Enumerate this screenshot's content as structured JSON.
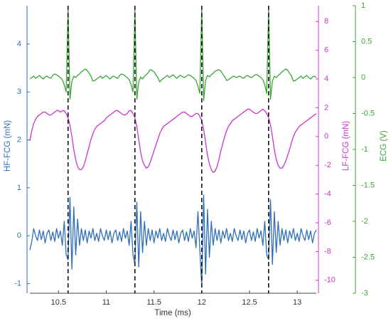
{
  "chart_data": {
    "type": "line",
    "xlabel": "Time (ms)",
    "xlim": [
      10.2,
      13.2
    ],
    "xticks": [
      10.5,
      11,
      11.5,
      12,
      12.5,
      13
    ],
    "ylim": [
      -1.2,
      4.8
    ],
    "yticks": [
      -1,
      0,
      1,
      2,
      3,
      4
    ],
    "y2lim": [
      -10.9,
      9.1
    ],
    "y2ticks": [
      -10,
      -8,
      -6,
      -4,
      -2,
      0,
      2,
      4,
      6,
      8
    ],
    "y3lim": [
      -3,
      1
    ],
    "y3ticks": [
      -3,
      -2.5,
      -2,
      -1.5,
      -1,
      -0.5,
      0,
      0.5,
      1
    ],
    "vlines": [
      10.6,
      11.3,
      12,
      12.7
    ],
    "x": [
      10.2,
      10.22,
      10.24,
      10.26,
      10.28,
      10.3,
      10.32,
      10.34,
      10.36,
      10.38,
      10.4,
      10.42,
      10.44,
      10.46,
      10.48,
      10.5,
      10.52,
      10.54,
      10.56,
      10.58,
      10.6,
      10.62,
      10.64,
      10.66,
      10.68,
      10.7,
      10.72,
      10.74,
      10.76,
      10.78,
      10.8,
      10.82,
      10.84,
      10.86,
      10.88,
      10.9,
      10.92,
      10.94,
      10.96,
      10.98,
      11,
      11.02,
      11.04,
      11.06,
      11.08,
      11.1,
      11.12,
      11.14,
      11.16,
      11.18,
      11.2,
      11.22,
      11.24,
      11.26,
      11.28,
      11.3,
      11.32,
      11.34,
      11.36,
      11.38,
      11.4,
      11.42,
      11.44,
      11.46,
      11.48,
      11.5,
      11.52,
      11.54,
      11.56,
      11.58,
      11.6,
      11.62,
      11.64,
      11.66,
      11.68,
      11.7,
      11.72,
      11.74,
      11.76,
      11.78,
      11.8,
      11.82,
      11.84,
      11.86,
      11.88,
      11.9,
      11.92,
      11.94,
      11.96,
      11.98,
      12,
      12.02,
      12.04,
      12.06,
      12.08,
      12.1,
      12.12,
      12.14,
      12.16,
      12.18,
      12.2,
      12.22,
      12.24,
      12.26,
      12.28,
      12.3,
      12.32,
      12.34,
      12.36,
      12.38,
      12.4,
      12.42,
      12.44,
      12.46,
      12.48,
      12.5,
      12.52,
      12.54,
      12.56,
      12.58,
      12.6,
      12.62,
      12.64,
      12.66,
      12.68,
      12.7,
      12.72,
      12.74,
      12.76,
      12.78,
      12.8,
      12.82,
      12.84,
      12.86,
      12.88,
      12.9,
      12.92,
      12.94,
      12.96,
      12.98,
      13,
      13.02,
      13.04,
      13.06,
      13.08,
      13.1,
      13.12,
      13.14,
      13.16,
      13.18,
      13.2
    ],
    "series": [
      {
        "name": "HF-FCG (mN)",
        "color": "#2e6fb7",
        "axis": "y",
        "values": [
          -0.3,
          -0.12,
          0.15,
          0.0,
          -0.1,
          0.12,
          -0.08,
          0.1,
          -0.15,
          0.05,
          0.12,
          -0.1,
          0.08,
          -0.12,
          0.15,
          -0.05,
          0.1,
          -0.2,
          0.3,
          -0.4,
          -0.5,
          0.8,
          -0.7,
          0.6,
          -0.4,
          0.35,
          -0.2,
          0.15,
          -0.1,
          0.12,
          -0.15,
          0.1,
          -0.05,
          0.15,
          -0.1,
          0.05,
          -0.12,
          0.15,
          0.0,
          -0.1,
          0.12,
          -0.08,
          0.1,
          -0.15,
          0.05,
          0.12,
          -0.1,
          0.08,
          -0.12,
          0.15,
          -0.05,
          0.1,
          -0.2,
          0.3,
          -0.4,
          -0.6,
          0.7,
          -0.65,
          0.5,
          -0.35,
          0.3,
          -0.2,
          0.15,
          -0.1,
          0.12,
          -0.15,
          0.1,
          -0.05,
          0.15,
          -0.1,
          0.05,
          -0.12,
          0.15,
          0.0,
          -0.1,
          0.12,
          -0.08,
          0.1,
          -0.15,
          0.05,
          0.12,
          -0.1,
          0.08,
          -0.12,
          0.15,
          -0.05,
          0.1,
          -0.25,
          0.5,
          -0.3,
          -1.05,
          0.85,
          -0.8,
          0.55,
          -0.45,
          0.3,
          -0.2,
          0.15,
          -0.1,
          0.12,
          -0.15,
          0.1,
          -0.05,
          0.15,
          -0.1,
          0.05,
          -0.12,
          0.15,
          0.0,
          -0.1,
          0.12,
          -0.08,
          0.1,
          -0.15,
          0.05,
          0.12,
          -0.1,
          0.08,
          -0.12,
          0.15,
          -0.05,
          0.1,
          -0.2,
          0.3,
          -0.4,
          -0.5,
          0.75,
          -0.6,
          0.5,
          -0.35,
          0.3,
          -0.2,
          0.15,
          -0.1,
          0.12,
          -0.15,
          0.1,
          -0.05,
          0.15,
          -0.1,
          0.05,
          -0.12,
          0.15,
          0.0,
          -0.1,
          0.12,
          -0.08,
          0.1,
          -0.15,
          0.05,
          0.12
        ]
      },
      {
        "name": "LF-FCG (mN)",
        "color": "#cc33cc",
        "axis": "y2",
        "values": [
          -0.3,
          0.4,
          0.9,
          1.2,
          1.4,
          1.5,
          1.6,
          1.7,
          1.7,
          1.6,
          1.5,
          1.5,
          1.6,
          1.7,
          1.8,
          1.8,
          1.7,
          1.8,
          1.8,
          1.6,
          1.3,
          0.8,
          0.0,
          -0.9,
          -1.6,
          -2.1,
          -2.3,
          -2.3,
          -2.1,
          -1.7,
          -1.2,
          -0.7,
          -0.2,
          0.2,
          0.5,
          0.7,
          0.8,
          0.9,
          1.0,
          1.1,
          1.3,
          1.4,
          1.5,
          1.6,
          1.7,
          1.8,
          1.8,
          1.7,
          1.6,
          1.5,
          1.5,
          1.6,
          1.8,
          1.8,
          1.6,
          1.3,
          0.7,
          -0.2,
          -1.1,
          -1.7,
          -2.0,
          -2.2,
          -2.1,
          -1.8,
          -1.4,
          -1.0,
          -0.6,
          -0.2,
          0.2,
          0.5,
          0.7,
          0.8,
          0.9,
          1.0,
          1.1,
          1.2,
          1.3,
          1.4,
          1.5,
          1.6,
          1.7,
          1.7,
          1.6,
          1.5,
          1.4,
          1.4,
          1.5,
          1.6,
          1.6,
          1.4,
          1.1,
          0.5,
          -0.4,
          -1.3,
          -1.9,
          -2.3,
          -2.5,
          -2.4,
          -2.1,
          -1.6,
          -1.0,
          -0.5,
          0.0,
          0.4,
          0.7,
          0.9,
          1.1,
          1.2,
          1.3,
          1.4,
          1.5,
          1.6,
          1.7,
          1.8,
          1.9,
          1.9,
          1.8,
          1.7,
          1.6,
          1.6,
          1.7,
          1.8,
          1.9,
          1.8,
          1.6,
          1.3,
          0.8,
          0.0,
          -0.9,
          -1.6,
          -2.0,
          -2.2,
          -2.2,
          -2.0,
          -1.7,
          -1.3,
          -0.9,
          -0.4,
          0.0,
          0.3,
          0.5,
          0.7,
          0.8,
          0.9,
          1.0,
          1.1,
          1.2,
          1.3,
          1.4,
          1.5,
          1.6
        ]
      },
      {
        "name": "ECG (V)",
        "color": "#3aa635",
        "axis": "y3",
        "values": [
          -0.02,
          0.0,
          0.02,
          -0.01,
          0.01,
          0.03,
          0.0,
          -0.02,
          0.01,
          0.02,
          0.0,
          -0.01,
          0.03,
          0.05,
          0.04,
          0.02,
          0.0,
          -0.03,
          -0.1,
          -0.2,
          0.95,
          -0.3,
          -0.05,
          0.02,
          0.0,
          0.03,
          0.05,
          0.08,
          0.1,
          0.12,
          0.1,
          0.06,
          0.02,
          -0.05,
          -0.04,
          -0.02,
          0.0,
          0.02,
          -0.01,
          0.01,
          0.03,
          0.0,
          -0.02,
          0.01,
          0.02,
          0.0,
          -0.01,
          0.03,
          0.05,
          0.04,
          0.02,
          0.0,
          -0.03,
          -0.1,
          -0.2,
          0.95,
          -0.3,
          -0.06,
          0.01,
          -0.02,
          0.02,
          0.04,
          0.07,
          0.11,
          0.1,
          0.08,
          0.04,
          0.0,
          -0.06,
          -0.03,
          -0.01,
          0.01,
          0.03,
          0.0,
          0.02,
          0.04,
          0.01,
          -0.01,
          0.02,
          0.03,
          0.01,
          0.0,
          0.02,
          0.04,
          0.03,
          0.01,
          -0.01,
          -0.04,
          -0.12,
          -0.22,
          0.97,
          -0.32,
          -0.04,
          0.03,
          0.01,
          0.04,
          0.06,
          0.09,
          0.1,
          0.11,
          0.09,
          0.05,
          0.01,
          -0.04,
          -0.03,
          -0.01,
          0.01,
          0.02,
          0.0,
          0.01,
          0.02,
          0.0,
          -0.01,
          0.02,
          0.03,
          0.01,
          0.0,
          0.02,
          0.04,
          0.04,
          0.02,
          0.0,
          -0.03,
          -0.1,
          -0.22,
          0.95,
          -0.3,
          -0.05,
          0.02,
          0.0,
          0.03,
          0.05,
          0.08,
          0.1,
          0.12,
          0.1,
          0.06,
          0.02,
          -0.05,
          -0.04,
          -0.02,
          0.0,
          0.02,
          -0.01,
          0.01,
          0.03,
          0.0,
          -0.02,
          0.01,
          0.02,
          0.0
        ]
      }
    ]
  }
}
